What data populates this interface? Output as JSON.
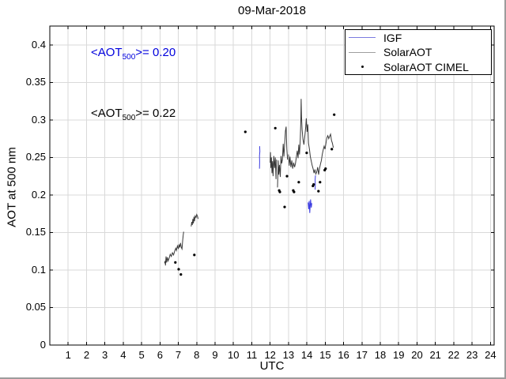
{
  "figure": {
    "background": "#ffffff",
    "window_edge_color": "#9c9c9c",
    "axis_color": "#000000",
    "grid_color": "#d9d9d9"
  },
  "chart_data": {
    "type": "line",
    "title": "09-Mar-2018",
    "xlabel": "UTC",
    "ylabel": "AOT at 500 nm",
    "xlim": [
      0,
      24.2
    ],
    "ylim": [
      0,
      0.425
    ],
    "xticks": [
      "1",
      "2",
      "3",
      "4",
      "5",
      "6",
      "7",
      "8",
      "9",
      "10",
      "11",
      "12",
      "13",
      "14",
      "15",
      "16",
      "17",
      "18",
      "19",
      "20",
      "21",
      "22",
      "23",
      "24"
    ],
    "yticks": [
      "0",
      "0.05",
      "0.1",
      "0.15",
      "0.2",
      "0.25",
      "0.3",
      "0.35",
      "0.4"
    ],
    "grid": true,
    "legend_position": "northeast",
    "series": [
      {
        "name": "IGF",
        "type": "line",
        "color": "#3c3ce0",
        "legend_color": "#7b7be0",
        "segments": [
          [
            [
              11.42,
              0.235
            ],
            [
              11.43,
              0.244
            ],
            [
              11.42,
              0.252
            ],
            [
              11.44,
              0.258
            ],
            [
              11.43,
              0.265
            ]
          ],
          [
            [
              14.07,
              0.19
            ],
            [
              14.1,
              0.181
            ],
            [
              14.13,
              0.192
            ],
            [
              14.16,
              0.176
            ],
            [
              14.2,
              0.194
            ],
            [
              14.24,
              0.183
            ],
            [
              14.27,
              0.189
            ]
          ],
          [
            [
              14.45,
              0.207
            ],
            [
              14.46,
              0.214
            ],
            [
              14.45,
              0.22
            ],
            [
              14.47,
              0.226
            ]
          ]
        ]
      },
      {
        "name": "SolarAOT",
        "type": "line",
        "color": "#3a3a3a",
        "legend_color": "#9e9e9e",
        "segments": [
          [
            [
              6.25,
              0.109
            ],
            [
              6.28,
              0.112
            ],
            [
              6.3,
              0.106
            ],
            [
              6.33,
              0.118
            ],
            [
              6.36,
              0.11
            ],
            [
              6.4,
              0.117
            ],
            [
              6.44,
              0.112
            ],
            [
              6.5,
              0.116
            ],
            [
              6.56,
              0.121
            ],
            [
              6.62,
              0.118
            ],
            [
              6.68,
              0.123
            ],
            [
              6.74,
              0.12
            ],
            [
              6.8,
              0.125
            ],
            [
              6.86,
              0.129
            ],
            [
              6.9,
              0.126
            ],
            [
              6.95,
              0.132
            ],
            [
              7.0,
              0.128
            ],
            [
              7.04,
              0.134
            ],
            [
              7.08,
              0.13
            ],
            [
              7.12,
              0.136
            ],
            [
              7.16,
              0.13
            ],
            [
              7.2,
              0.128
            ],
            [
              7.24,
              0.14
            ],
            [
              7.27,
              0.147
            ],
            [
              7.29,
              0.151
            ]
          ],
          [
            [
              7.7,
              0.158
            ],
            [
              7.73,
              0.164
            ],
            [
              7.76,
              0.16
            ],
            [
              7.79,
              0.168
            ],
            [
              7.82,
              0.162
            ],
            [
              7.85,
              0.171
            ],
            [
              7.88,
              0.165
            ],
            [
              7.92,
              0.172
            ],
            [
              7.96,
              0.17
            ],
            [
              8.0,
              0.174
            ],
            [
              8.04,
              0.172
            ],
            [
              8.08,
              0.168
            ]
          ],
          [
            [
              12.0,
              0.243
            ],
            [
              12.02,
              0.257
            ],
            [
              12.04,
              0.236
            ],
            [
              12.07,
              0.25
            ],
            [
              12.1,
              0.229
            ],
            [
              12.13,
              0.245
            ],
            [
              12.16,
              0.225
            ],
            [
              12.2,
              0.252
            ],
            [
              12.24,
              0.236
            ],
            [
              12.28,
              0.25
            ],
            [
              12.32,
              0.221
            ],
            [
              12.35,
              0.247
            ]
          ],
          [
            [
              12.4,
              0.21
            ],
            [
              12.44,
              0.246
            ],
            [
              12.47,
              0.227
            ],
            [
              12.51,
              0.24
            ],
            [
              12.55,
              0.224
            ],
            [
              12.59,
              0.252
            ],
            [
              12.63,
              0.242
            ],
            [
              12.67,
              0.247
            ],
            [
              12.71,
              0.268
            ],
            [
              12.75,
              0.251
            ],
            [
              12.79,
              0.267
            ],
            [
              12.83,
              0.285
            ],
            [
              12.87,
              0.291
            ],
            [
              12.91,
              0.261
            ],
            [
              12.95,
              0.247
            ]
          ],
          [
            [
              13.0,
              0.254
            ],
            [
              13.04,
              0.239
            ],
            [
              13.08,
              0.251
            ],
            [
              13.13,
              0.237
            ],
            [
              13.18,
              0.246
            ],
            [
              13.23,
              0.235
            ],
            [
              13.28,
              0.243
            ],
            [
              13.33,
              0.237
            ],
            [
              13.38,
              0.242
            ],
            [
              13.43,
              0.251
            ],
            [
              13.48,
              0.259
            ],
            [
              13.52,
              0.249
            ],
            [
              13.56,
              0.267
            ],
            [
              13.6,
              0.254
            ],
            [
              13.64,
              0.274
            ],
            [
              13.67,
              0.299
            ],
            [
              13.69,
              0.328
            ],
            [
              13.71,
              0.304
            ],
            [
              13.74,
              0.287
            ],
            [
              13.79,
              0.274
            ],
            [
              13.84,
              0.267
            ],
            [
              13.89,
              0.279
            ],
            [
              13.94,
              0.291
            ],
            [
              13.97,
              0.302
            ],
            [
              14.01,
              0.284
            ],
            [
              14.05,
              0.294
            ],
            [
              14.09,
              0.269
            ],
            [
              14.14,
              0.261
            ],
            [
              14.19,
              0.251
            ],
            [
              14.24,
              0.245
            ],
            [
              14.29,
              0.239
            ],
            [
              14.34,
              0.235
            ],
            [
              14.39,
              0.229
            ],
            [
              14.44,
              0.234
            ],
            [
              14.49,
              0.228
            ],
            [
              14.54,
              0.231
            ],
            [
              14.59,
              0.237
            ],
            [
              14.64,
              0.227
            ],
            [
              14.69,
              0.235
            ],
            [
              14.74,
              0.241
            ],
            [
              14.79,
              0.246
            ],
            [
              14.84,
              0.254
            ],
            [
              14.89,
              0.26
            ],
            [
              14.94,
              0.265
            ],
            [
              14.99,
              0.261
            ],
            [
              15.04,
              0.269
            ],
            [
              15.09,
              0.276
            ],
            [
              15.14,
              0.279
            ],
            [
              15.19,
              0.275
            ],
            [
              15.24,
              0.278
            ],
            [
              15.29,
              0.281
            ],
            [
              15.34,
              0.273
            ],
            [
              15.39,
              0.269
            ],
            [
              15.44,
              0.263
            ]
          ]
        ]
      },
      {
        "name": "SolarAOT CIMEL",
        "type": "scatter",
        "color": "#000000",
        "points": [
          [
            6.84,
            0.11
          ],
          [
            7.02,
            0.101
          ],
          [
            7.14,
            0.094
          ],
          [
            7.87,
            0.12
          ],
          [
            10.65,
            0.284
          ],
          [
            12.28,
            0.289
          ],
          [
            12.49,
            0.206
          ],
          [
            12.53,
            0.204
          ],
          [
            12.79,
            0.184
          ],
          [
            12.92,
            0.225
          ],
          [
            13.26,
            0.206
          ],
          [
            13.3,
            0.204
          ],
          [
            13.56,
            0.217
          ],
          [
            13.99,
            0.256
          ],
          [
            14.33,
            0.212
          ],
          [
            14.37,
            0.214
          ],
          [
            14.63,
            0.205
          ],
          [
            14.72,
            0.217
          ],
          [
            14.97,
            0.233
          ],
          [
            15.02,
            0.235
          ],
          [
            15.36,
            0.261
          ],
          [
            15.49,
            0.307
          ]
        ]
      }
    ],
    "annotations": [
      {
        "text": "<AOT_500>= 0.20",
        "prefix": "<AOT",
        "sub": "500",
        "suffix": ">= 0.20",
        "value": 0.2,
        "color": "#0000dd"
      },
      {
        "text": "<AOT_500>= 0.22",
        "prefix": "<AOT",
        "sub": "500",
        "suffix": ">= 0.22",
        "value": 0.22,
        "color": "#000000"
      }
    ]
  }
}
